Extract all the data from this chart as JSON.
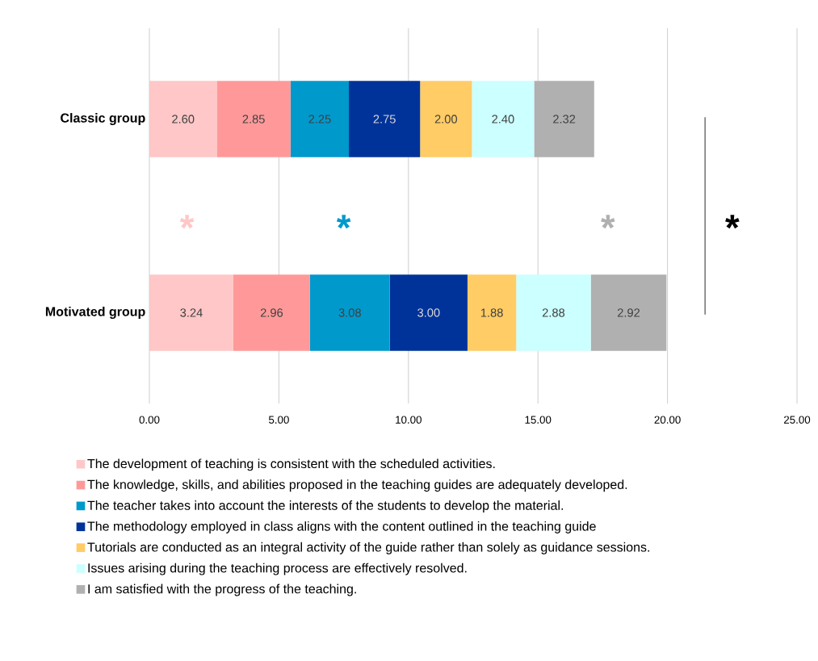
{
  "chart_data": {
    "type": "bar",
    "orientation": "horizontal",
    "stacked": true,
    "categories": [
      "Classic group",
      "Motivated group"
    ],
    "series": [
      {
        "name": "The development of teaching is consistent with the scheduled activities.",
        "color": "#ffc7c7",
        "values": [
          2.6,
          3.24
        ],
        "value_labels": [
          "2.60",
          "3.24"
        ]
      },
      {
        "name": "The knowledge, skills, and abilities proposed in the teaching guides are adequately developed.",
        "color": "#ff9999",
        "values": [
          2.85,
          2.96
        ],
        "value_labels": [
          "2.85",
          "2.96"
        ]
      },
      {
        "name": "The teacher takes into account the interests of the students to develop the material.",
        "color": "#0099cc",
        "values": [
          2.25,
          3.08
        ],
        "value_labels": [
          "2.25",
          "3.08"
        ]
      },
      {
        "name": "The methodology employed in class aligns with the content outlined in the teaching guide",
        "color": "#003399",
        "values": [
          2.75,
          3.0
        ],
        "value_labels": [
          "2.75",
          "3.00"
        ]
      },
      {
        "name": "Tutorials are conducted as an integral activity of the guide rather than solely as guidance sessions.",
        "color": "#ffcc66",
        "values": [
          2.0,
          1.88
        ],
        "value_labels": [
          "2.00",
          "1.88"
        ]
      },
      {
        "name": "Issues arising during the teaching process are effectively resolved.",
        "color": "#ccffff",
        "values": [
          2.4,
          2.88
        ],
        "value_labels": [
          "2.40",
          "2.88"
        ]
      },
      {
        "name": "I am satisfied with the progress of the teaching.",
        "color": "#b0b0b0",
        "values": [
          2.32,
          2.92
        ],
        "value_labels": [
          "2.32",
          "2.92"
        ]
      }
    ],
    "xlim": [
      0,
      25
    ],
    "xticks": [
      {
        "value": 0,
        "label": "0.00"
      },
      {
        "value": 5,
        "label": "5.00"
      },
      {
        "value": 10,
        "label": "10.00"
      },
      {
        "value": 15,
        "label": "15.00"
      },
      {
        "value": 20,
        "label": "20.00"
      },
      {
        "value": 25,
        "label": "25.00"
      }
    ],
    "grid": "x",
    "legend": "bottom",
    "annotations": [
      "*",
      "*",
      "*",
      "*"
    ]
  }
}
